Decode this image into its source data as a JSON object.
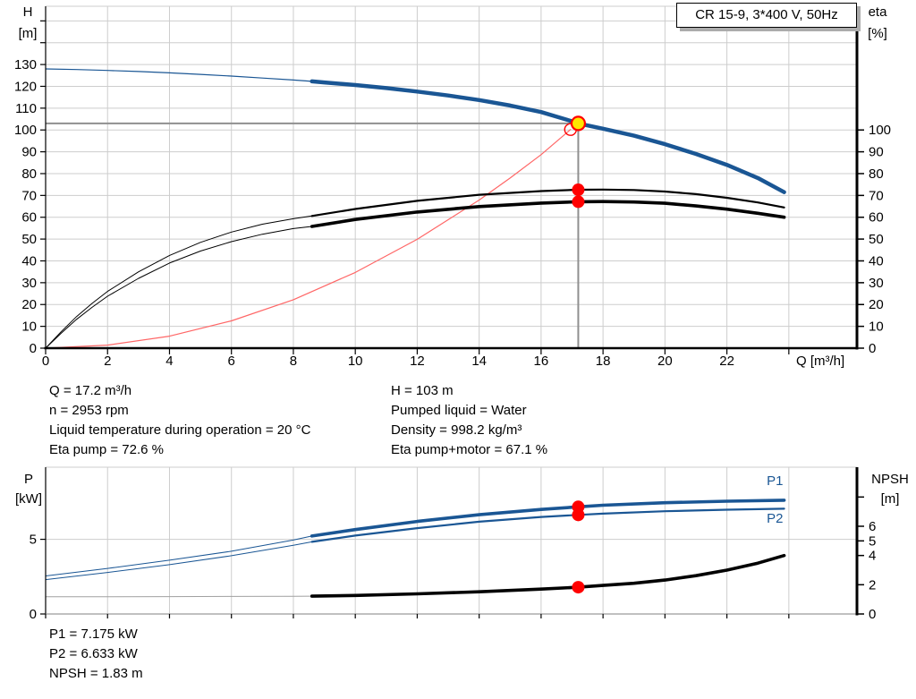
{
  "header": {
    "title_box": "CR 15-9, 3*400 V, 50Hz"
  },
  "info_panel": {
    "left": [
      "Q = 17.2 m³/h",
      "n = 2953 rpm",
      "Liquid temperature during operation = 20 °C",
      "Eta pump = 72.6 %"
    ],
    "right": [
      "H = 103 m",
      "Pumped liquid = Water",
      "Density = 998.2 kg/m³",
      "Eta pump+motor = 67.1 %"
    ]
  },
  "results_panel": [
    "P1 = 7.175 kW",
    "P2 = 6.633 kW",
    "NPSH = 1.83 m"
  ],
  "colors": {
    "curve_blue": "#1a5694",
    "marker_red": "#ff0000",
    "system_red": "#ff6666",
    "crosshair_gray": "#8f8f8f",
    "grid_gray": "#cdcdcd",
    "npsh_thin_gray": "#a0a0a0",
    "curve_black": "#000000",
    "duty_yellow": "#ffe600",
    "axis_black": "#000000",
    "bottom_axis_gray": "#808080"
  },
  "chart_data": [
    {
      "type": "line",
      "id": "qh-eta-chart",
      "xlabel": "Q [m³/h]",
      "ylabel_left": [
        "H",
        "[m]"
      ],
      "ylabel_right": [
        "eta",
        "[%]"
      ],
      "xlim": [
        0,
        26.2
      ],
      "ylim_left": [
        0,
        156.7
      ],
      "ylim_right": [
        0,
        156.7
      ],
      "x_grid": [
        2,
        4,
        6,
        8,
        10,
        12,
        14,
        16,
        18,
        20,
        22,
        24
      ],
      "y_grid": [
        10,
        20,
        30,
        40,
        50,
        60,
        70,
        80,
        90,
        100,
        110,
        120,
        130,
        140,
        150
      ],
      "x_ticks": [
        {
          "v": 0,
          "label": "0"
        },
        {
          "v": 2,
          "label": "2"
        },
        {
          "v": 4,
          "label": "4"
        },
        {
          "v": 6,
          "label": "6"
        },
        {
          "v": 8,
          "label": "8"
        },
        {
          "v": 10,
          "label": "10"
        },
        {
          "v": 12,
          "label": "12"
        },
        {
          "v": 14,
          "label": "14"
        },
        {
          "v": 16,
          "label": "16"
        },
        {
          "v": 18,
          "label": "18"
        },
        {
          "v": 20,
          "label": "20"
        },
        {
          "v": 22,
          "label": "22"
        },
        {
          "v": 24,
          "label": ""
        }
      ],
      "y_ticks_left": [
        {
          "v": 0,
          "label": "0"
        },
        {
          "v": 10,
          "label": "10"
        },
        {
          "v": 20,
          "label": "20"
        },
        {
          "v": 30,
          "label": "30"
        },
        {
          "v": 40,
          "label": "40"
        },
        {
          "v": 50,
          "label": "50"
        },
        {
          "v": 60,
          "label": "60"
        },
        {
          "v": 70,
          "label": "70"
        },
        {
          "v": 80,
          "label": "80"
        },
        {
          "v": 90,
          "label": "90"
        },
        {
          "v": 100,
          "label": "100"
        },
        {
          "v": 110,
          "label": "110"
        },
        {
          "v": 120,
          "label": "120"
        },
        {
          "v": 130,
          "label": "130"
        },
        {
          "v": 140,
          "label": ""
        },
        {
          "v": 150,
          "label": ""
        }
      ],
      "y_ticks_right": [
        {
          "v": 0,
          "label": "0"
        },
        {
          "v": 10,
          "label": "10"
        },
        {
          "v": 20,
          "label": "20"
        },
        {
          "v": 30,
          "label": "30"
        },
        {
          "v": 40,
          "label": "40"
        },
        {
          "v": 50,
          "label": "50"
        },
        {
          "v": 60,
          "label": "60"
        },
        {
          "v": 70,
          "label": "70"
        },
        {
          "v": 80,
          "label": "80"
        },
        {
          "v": 90,
          "label": "90"
        },
        {
          "v": 100,
          "label": "100"
        }
      ],
      "crosshair": {
        "q": 17.2,
        "v": 103
      },
      "series": [
        {
          "name": "system-curve",
          "color": "system_red",
          "axis": "left",
          "thin": 1.2,
          "split": null,
          "points": [
            [
              0,
              0
            ],
            [
              2,
              1.4
            ],
            [
              4,
              5.5
            ],
            [
              6,
              12.5
            ],
            [
              8,
              22.2
            ],
            [
              10,
              34.7
            ],
            [
              12,
              49.9
            ],
            [
              14,
              67.9
            ],
            [
              15,
              78
            ],
            [
              16,
              88.7
            ],
            [
              16.95,
              100.2
            ]
          ]
        },
        {
          "name": "eta-pump",
          "color": "curve_black",
          "axis": "right",
          "thin": 1,
          "thick": 2.2,
          "split": 8.6,
          "points": [
            [
              0,
              0
            ],
            [
              0.5,
              7.5
            ],
            [
              1,
              14.5
            ],
            [
              1.5,
              20.5
            ],
            [
              2,
              26
            ],
            [
              3,
              35
            ],
            [
              4,
              42.5
            ],
            [
              5,
              48.5
            ],
            [
              6,
              53.2
            ],
            [
              7,
              56.8
            ],
            [
              8,
              59.3
            ],
            [
              8.6,
              60.6
            ],
            [
              10,
              63.8
            ],
            [
              12,
              67.5
            ],
            [
              14,
              70.3
            ],
            [
              16,
              72.0
            ],
            [
              17.2,
              72.6
            ],
            [
              18,
              72.7
            ],
            [
              19,
              72.5
            ],
            [
              20,
              71.8
            ],
            [
              21,
              70.6
            ],
            [
              22,
              68.9
            ],
            [
              23,
              66.8
            ],
            [
              23.85,
              64.5
            ]
          ]
        },
        {
          "name": "eta-pump-motor",
          "color": "curve_black",
          "axis": "right",
          "thin": 1,
          "thick": 3.6,
          "split": 8.6,
          "points": [
            [
              0,
              0
            ],
            [
              0.5,
              6.8
            ],
            [
              1,
              13.2
            ],
            [
              1.5,
              18.7
            ],
            [
              2,
              23.8
            ],
            [
              3,
              32
            ],
            [
              4,
              39
            ],
            [
              5,
              44.5
            ],
            [
              6,
              48.8
            ],
            [
              7,
              52.2
            ],
            [
              8,
              54.8
            ],
            [
              8.6,
              55.8
            ],
            [
              10,
              59
            ],
            [
              12,
              62.4
            ],
            [
              14,
              64.9
            ],
            [
              16,
              66.5
            ],
            [
              17.2,
              67.1
            ],
            [
              18,
              67.2
            ],
            [
              19,
              67
            ],
            [
              20,
              66.4
            ],
            [
              21,
              65.2
            ],
            [
              22,
              63.7
            ],
            [
              23,
              61.8
            ],
            [
              23.85,
              60
            ]
          ]
        },
        {
          "name": "head",
          "color": "curve_blue",
          "axis": "left",
          "thin": 1.2,
          "thick": 4.5,
          "split": 8.6,
          "points": [
            [
              0,
              128
            ],
            [
              1,
              127.7
            ],
            [
              2,
              127.3
            ],
            [
              3,
              126.8
            ],
            [
              4,
              126.2
            ],
            [
              5,
              125.5
            ],
            [
              6,
              124.7
            ],
            [
              7,
              123.8
            ],
            [
              8,
              122.9
            ],
            [
              8.6,
              122.3
            ],
            [
              9,
              121.8
            ],
            [
              10,
              120.6
            ],
            [
              11,
              119.2
            ],
            [
              12,
              117.6
            ],
            [
              13,
              115.8
            ],
            [
              14,
              113.7
            ],
            [
              15,
              111.2
            ],
            [
              16,
              108.2
            ],
            [
              17,
              104
            ],
            [
              17.2,
              103
            ],
            [
              18,
              100.6
            ],
            [
              19,
              97.4
            ],
            [
              20,
              93.5
            ],
            [
              21,
              89
            ],
            [
              22,
              84
            ],
            [
              23,
              78
            ],
            [
              23.85,
              71.5
            ]
          ]
        }
      ],
      "markers": [
        {
          "kind": "open",
          "q": 16.95,
          "v": 100.2,
          "axis": "left",
          "r": 6.5
        },
        {
          "kind": "dot",
          "q": 17.2,
          "v": 72.6,
          "axis": "right",
          "r": 7
        },
        {
          "kind": "dot",
          "q": 17.2,
          "v": 67.1,
          "axis": "right",
          "r": 7
        },
        {
          "kind": "duty",
          "q": 17.2,
          "v": 103,
          "axis": "left",
          "r": 7.5
        }
      ],
      "annotations": []
    },
    {
      "type": "line",
      "id": "power-npsh-chart",
      "xlabel": "",
      "ylabel_left": [
        "P",
        "[kW]"
      ],
      "ylabel_right": [
        "NPSH",
        "[m]"
      ],
      "xlim": [
        0,
        26.2
      ],
      "ylim_left": [
        0,
        9.83
      ],
      "ylim_right": [
        0,
        10.04
      ],
      "x_grid": [
        2,
        4,
        6,
        8,
        10,
        12,
        14,
        16,
        18,
        20,
        22,
        24
      ],
      "y_grid": [
        5
      ],
      "x_ticks": [
        {
          "v": 0,
          "label": ""
        },
        {
          "v": 2,
          "label": ""
        },
        {
          "v": 4,
          "label": ""
        },
        {
          "v": 6,
          "label": ""
        },
        {
          "v": 8,
          "label": ""
        },
        {
          "v": 10,
          "label": ""
        },
        {
          "v": 12,
          "label": ""
        },
        {
          "v": 14,
          "label": ""
        },
        {
          "v": 16,
          "label": ""
        },
        {
          "v": 18,
          "label": ""
        },
        {
          "v": 20,
          "label": ""
        },
        {
          "v": 22,
          "label": ""
        },
        {
          "v": 24,
          "label": ""
        }
      ],
      "y_ticks_left": [
        {
          "v": 0,
          "label": "0"
        },
        {
          "v": 5,
          "label": "5"
        }
      ],
      "y_ticks_right": [
        {
          "v": 0,
          "label": "0"
        },
        {
          "v": 2,
          "label": "2"
        },
        {
          "v": 4,
          "label": "4"
        },
        {
          "v": 5,
          "label": "5"
        },
        {
          "v": 6,
          "label": "6"
        },
        {
          "v": 8,
          "label": ""
        }
      ],
      "crosshair": null,
      "series": [
        {
          "name": "npsh",
          "color": "curve_black",
          "axis": "right",
          "thin": 1,
          "thick": 3.6,
          "split": 8.6,
          "thin_color": "npsh_thin_gray",
          "points": [
            [
              0,
              1.18
            ],
            [
              2,
              1.18
            ],
            [
              4,
              1.19
            ],
            [
              6,
              1.2
            ],
            [
              8,
              1.21
            ],
            [
              8.6,
              1.22
            ],
            [
              10,
              1.27
            ],
            [
              12,
              1.38
            ],
            [
              14,
              1.52
            ],
            [
              16,
              1.7
            ],
            [
              17.2,
              1.83
            ],
            [
              18,
              1.95
            ],
            [
              19,
              2.1
            ],
            [
              20,
              2.32
            ],
            [
              21,
              2.62
            ],
            [
              22,
              3.0
            ],
            [
              23,
              3.48
            ],
            [
              23.85,
              4.0
            ]
          ]
        },
        {
          "name": "p2",
          "color": "curve_blue",
          "axis": "left",
          "thin": 1,
          "thick": 2.2,
          "split": 8.6,
          "points": [
            [
              0,
              2.3
            ],
            [
              2,
              2.78
            ],
            [
              4,
              3.3
            ],
            [
              6,
              3.9
            ],
            [
              8,
              4.6
            ],
            [
              8.6,
              4.83
            ],
            [
              10,
              5.25
            ],
            [
              12,
              5.75
            ],
            [
              14,
              6.18
            ],
            [
              16,
              6.5
            ],
            [
              17.2,
              6.633
            ],
            [
              18,
              6.72
            ],
            [
              20,
              6.88
            ],
            [
              22,
              6.98
            ],
            [
              23.85,
              7.05
            ]
          ]
        },
        {
          "name": "p1",
          "color": "curve_blue",
          "axis": "left",
          "thin": 1,
          "thick": 3.6,
          "split": 8.6,
          "points": [
            [
              0,
              2.55
            ],
            [
              2,
              3.05
            ],
            [
              4,
              3.6
            ],
            [
              6,
              4.2
            ],
            [
              8,
              4.95
            ],
            [
              8.6,
              5.22
            ],
            [
              10,
              5.65
            ],
            [
              12,
              6.2
            ],
            [
              14,
              6.65
            ],
            [
              16,
              7.0
            ],
            [
              17.2,
              7.175
            ],
            [
              18,
              7.28
            ],
            [
              20,
              7.45
            ],
            [
              22,
              7.55
            ],
            [
              23.85,
              7.62
            ]
          ]
        }
      ],
      "markers": [
        {
          "kind": "dot",
          "q": 17.2,
          "v": 7.175,
          "axis": "left",
          "r": 7
        },
        {
          "kind": "dot",
          "q": 17.2,
          "v": 6.633,
          "axis": "left",
          "r": 7
        },
        {
          "kind": "dot",
          "q": 17.2,
          "v": 1.83,
          "axis": "right",
          "r": 7
        }
      ],
      "annotations": [
        {
          "text": "P1",
          "q": 23.55,
          "v": 8.62,
          "axis": "left",
          "color": "curve_blue"
        },
        {
          "text": "P2",
          "q": 23.55,
          "v": 6.12,
          "axis": "left",
          "color": "curve_blue"
        }
      ]
    }
  ]
}
